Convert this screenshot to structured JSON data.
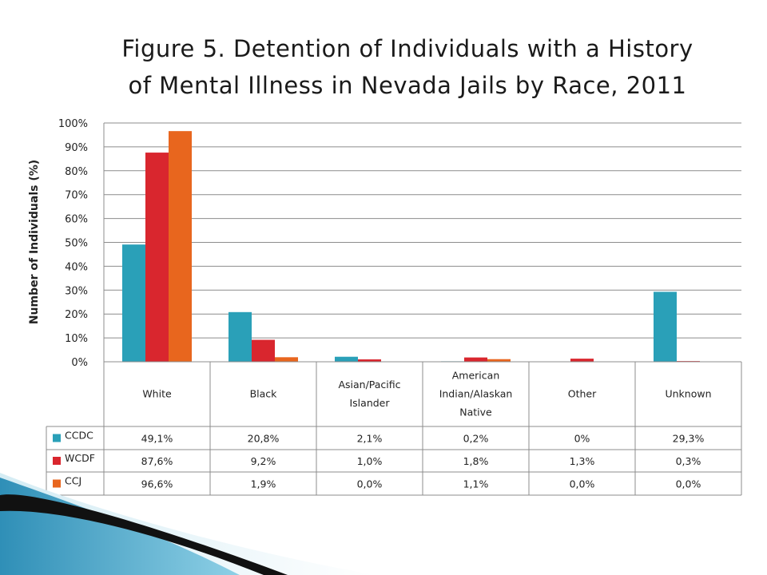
{
  "chart_data": {
    "type": "bar",
    "title_lines": [
      "Figure 5. Detention of Individuals with a History",
      "of Mental Illness in Nevada Jails by Race, 2011"
    ],
    "ylabel": "Number of Individuals (%)",
    "xlabel": "",
    "ylim": [
      0,
      100
    ],
    "yticks": [
      "0%",
      "10%",
      "20%",
      "30%",
      "40%",
      "50%",
      "60%",
      "70%",
      "80%",
      "90%",
      "100%"
    ],
    "grid": true,
    "legend": "data-table",
    "categories": [
      [
        "White"
      ],
      [
        "Black"
      ],
      [
        "Asian/Pacific",
        "Islander"
      ],
      [
        "American",
        "Indian/Alaskan",
        "Native"
      ],
      [
        "Other"
      ],
      [
        "Unknown"
      ]
    ],
    "series": [
      {
        "name": "CCDC",
        "color": "#2aa0b8",
        "values": [
          49.1,
          20.8,
          2.1,
          0.2,
          0,
          29.3
        ],
        "labels": [
          "49,1%",
          "20,8%",
          "2,1%",
          "0,2%",
          "0%",
          "29,3%"
        ]
      },
      {
        "name": "WCDF",
        "color": "#d9262e",
        "values": [
          87.6,
          9.2,
          1.0,
          1.8,
          1.3,
          0.3
        ],
        "labels": [
          "87,6%",
          "9,2%",
          "1,0%",
          "1,8%",
          "1,3%",
          "0,3%"
        ]
      },
      {
        "name": "CCJ",
        "color": "#e8661e",
        "values": [
          96.6,
          1.9,
          0.0,
          1.1,
          0.0,
          0.0
        ],
        "labels": [
          "96,6%",
          "1,9%",
          "0,0%",
          "1,1%",
          "0,0%",
          "0,0%"
        ]
      }
    ]
  }
}
